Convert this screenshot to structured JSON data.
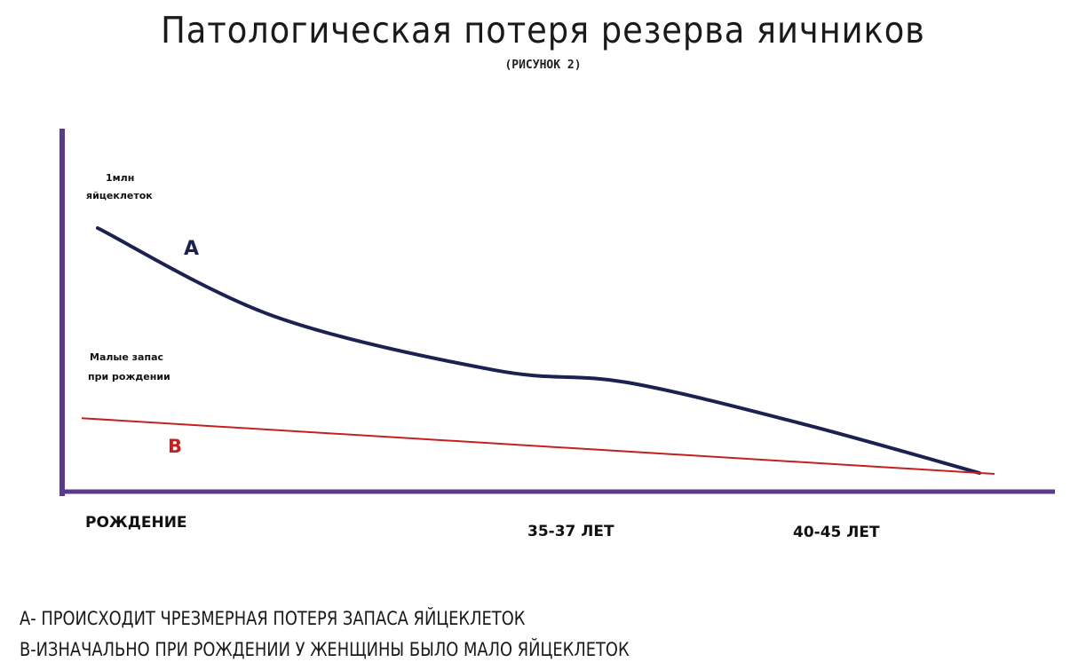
{
  "chart_data": {
    "type": "line",
    "title": "Патологическая потеря резерва яичников",
    "subtitle": "(РИСУНОК 2)",
    "x_tick_labels": [
      "РОЖДЕНИЕ",
      "35-37 ЛЕТ",
      "40-45 ЛЕТ"
    ],
    "annotations": {
      "top_line1": "1млн",
      "top_line2": "яйцеклеток",
      "low_line1": "Малые запас",
      "low_line2": "при рождении"
    },
    "series": [
      {
        "name": "A",
        "color": "#1b2150",
        "points": [
          [
            0.0,
            1.0
          ],
          [
            0.2,
            0.64
          ],
          [
            0.45,
            0.42
          ],
          [
            0.6,
            0.37
          ],
          [
            0.8,
            0.2
          ],
          [
            1.0,
            0.0
          ]
        ]
      },
      {
        "name": "B",
        "color": "#c42020",
        "points": [
          [
            0.0,
            0.26
          ],
          [
            1.0,
            0.0
          ]
        ]
      }
    ],
    "grid": false,
    "axis_color": "#5a3a8c"
  },
  "legend": [
    "А- ПРОИСХОДИТ ЧРЕЗМЕРНАЯ ПОТЕРЯ ЗАПАСА ЯЙЦЕКЛЕТОК",
    "В-ИЗНАЧАЛЬНО ПРИ РОЖДЕНИИ У ЖЕНЩИНЫ БЫЛО МАЛО ЯЙЦЕКЛЕТОК"
  ]
}
